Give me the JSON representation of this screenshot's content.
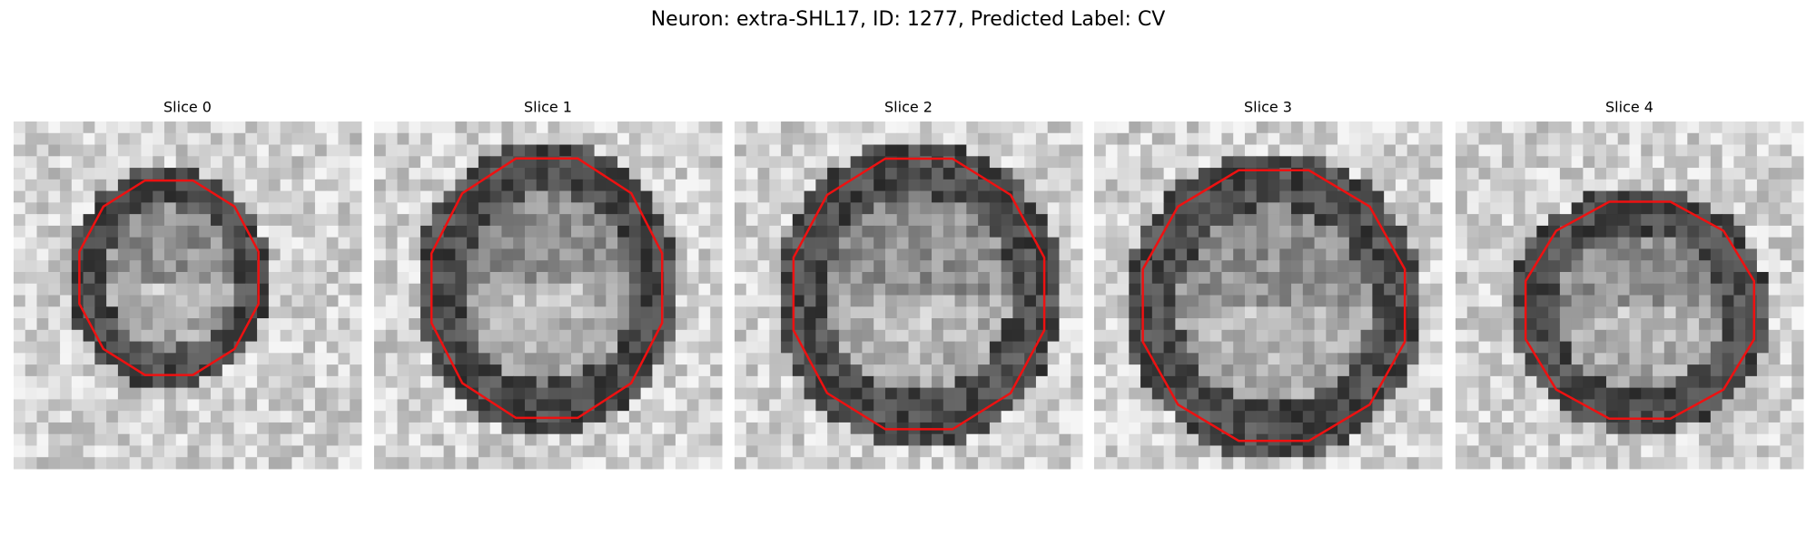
{
  "title": "Neuron: extra-SHL17, ID: 1277, Predicted Label: CV",
  "panels": [
    {
      "label": "Slice 0"
    },
    {
      "label": "Slice 1"
    },
    {
      "label": "Slice 2"
    },
    {
      "label": "Slice 3"
    },
    {
      "label": "Slice 4"
    }
  ]
}
